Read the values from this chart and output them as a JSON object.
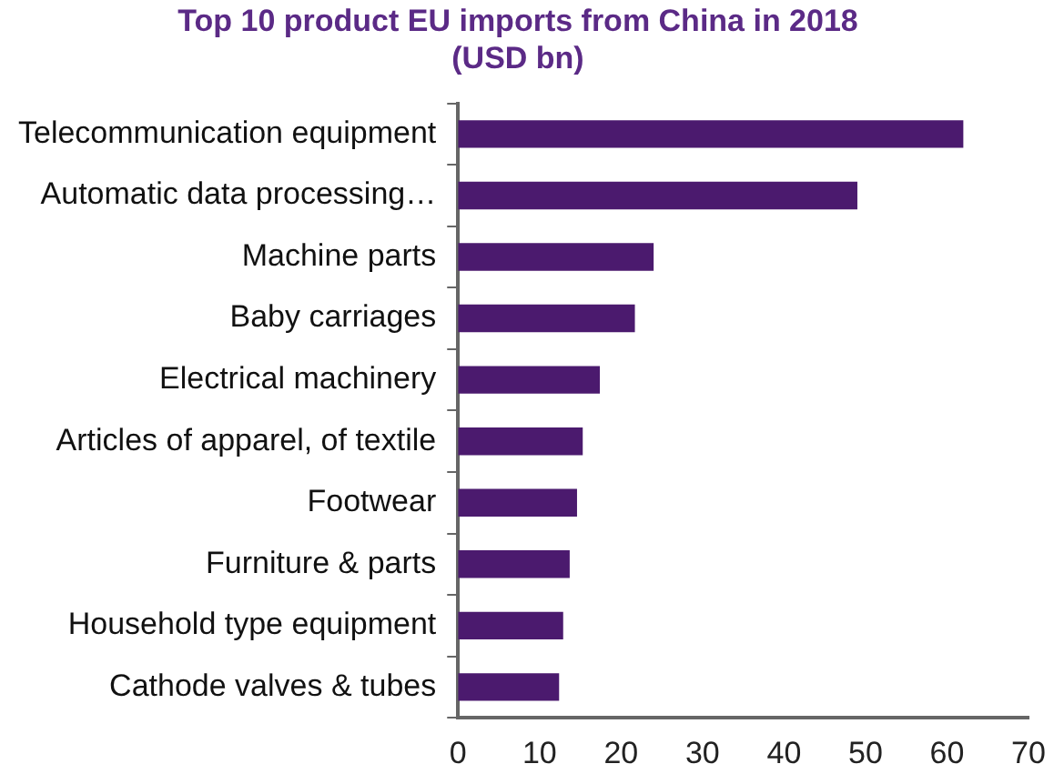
{
  "chart_data": {
    "type": "bar",
    "orientation": "horizontal",
    "title": [
      "Top 10 product EU imports from China in 2018",
      "(USD bn)"
    ],
    "categories": [
      "Telecommunication equipment",
      "Automatic data processing…",
      "Machine parts",
      "Baby carriages",
      "Electrical machinery",
      "Articles of apparel, of textile",
      "Footwear",
      "Furniture & parts",
      "Household type equipment",
      "Cathode valves & tubes"
    ],
    "values": [
      62,
      49,
      24,
      21.7,
      17.4,
      15.3,
      14.6,
      13.7,
      12.9,
      12.4
    ],
    "color": "#4b1a6e",
    "xlim": [
      0,
      70
    ],
    "xticks": [
      0,
      10,
      20,
      30,
      40,
      50,
      60,
      70
    ],
    "grid": false,
    "legend": false
  }
}
